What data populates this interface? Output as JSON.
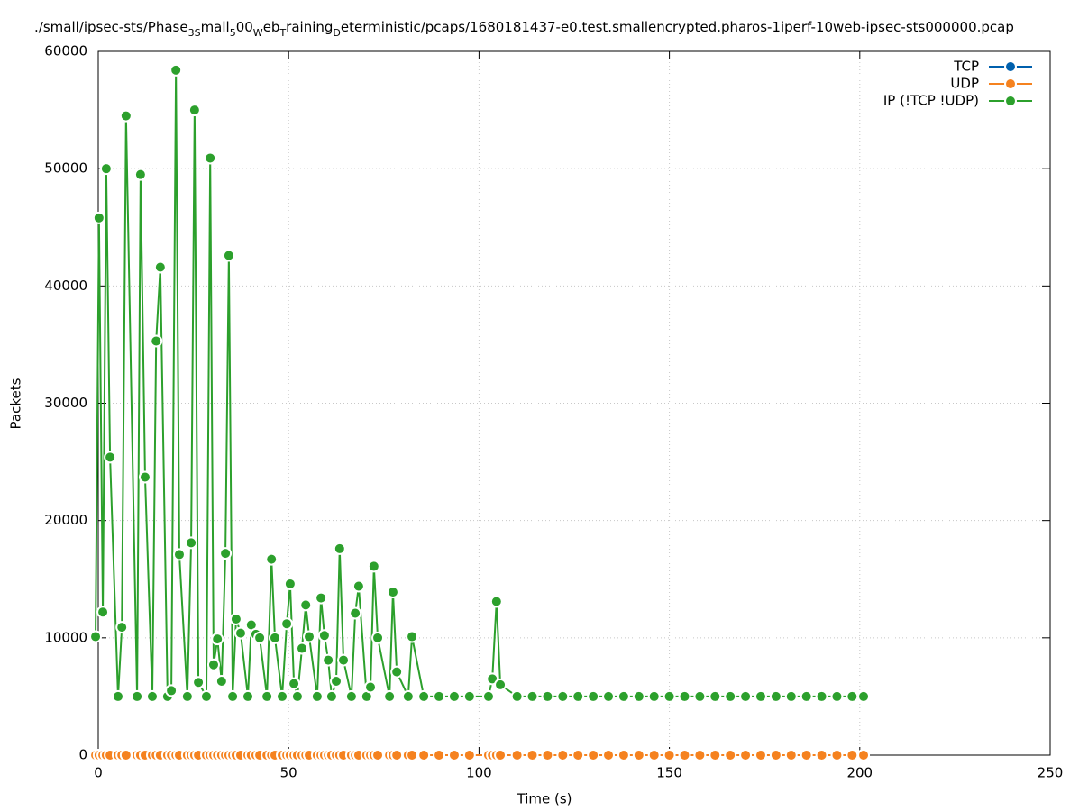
{
  "chart_data": {
    "type": "line",
    "title": [
      {
        "text": "./small/ipsec-sts/Phase"
      },
      {
        "text": "3S",
        "sub": true
      },
      {
        "text": "mall"
      },
      {
        "text": "5",
        "sub": true
      },
      {
        "text": "00"
      },
      {
        "text": "W",
        "sub": true
      },
      {
        "text": "eb"
      },
      {
        "text": "T",
        "sub": true
      },
      {
        "text": "raining"
      },
      {
        "text": "D",
        "sub": true
      },
      {
        "text": "eterministic/pcaps/1680181437-e0.test.smallencrypted.pharos-1iperf-10web-ipsec-sts000000.pcap"
      }
    ],
    "x_label": "Time (s)",
    "y_label": "Packets",
    "x": [
      -0.7,
      0.2,
      1.2,
      2.1,
      3.1,
      5.2,
      6.2,
      7.3,
      10.2,
      11.1,
      12.3,
      14.2,
      15.2,
      16.3,
      18.2,
      19.2,
      20.4,
      21.3,
      23.4,
      24.4,
      25.3,
      26.3,
      28.4,
      29.4,
      30.3,
      31.3,
      32.4,
      33.4,
      34.3,
      35.3,
      36.2,
      37.4,
      39.3,
      40.2,
      41.4,
      42.4,
      44.3,
      45.5,
      46.4,
      48.3,
      49.5,
      50.4,
      51.4,
      52.3,
      53.5,
      54.5,
      55.4,
      57.5,
      58.5,
      59.4,
      60.4,
      61.3,
      62.5,
      63.4,
      64.4,
      66.5,
      67.5,
      68.4,
      70.5,
      71.5,
      72.4,
      73.4,
      76.5,
      77.4,
      78.4,
      81.4,
      82.4,
      85.5,
      89.5,
      93.5,
      97.5,
      102.5,
      103.5,
      104.6,
      105.6,
      110,
      114,
      118,
      122,
      126,
      130,
      134,
      138,
      142,
      146,
      150,
      154,
      158,
      162,
      166,
      170,
      174,
      178,
      182,
      186,
      190,
      194,
      198,
      201
    ],
    "series": [
      {
        "name": "TCP",
        "color": "#0060ad",
        "values": [
          0,
          0,
          0,
          0,
          0,
          0,
          0,
          0,
          0,
          0,
          0,
          0,
          0,
          0,
          0,
          0,
          0,
          0,
          0,
          0,
          0,
          0,
          0,
          0,
          0,
          0,
          0,
          0,
          0,
          0,
          0,
          0,
          0,
          0,
          0,
          0,
          0,
          0,
          0,
          0,
          0,
          0,
          0,
          0,
          0,
          0,
          0,
          0,
          0,
          0,
          0,
          0,
          0,
          0,
          0,
          0,
          0,
          0,
          0,
          0,
          0,
          0,
          0,
          0,
          0,
          0,
          0,
          0,
          0,
          0,
          0,
          0,
          0,
          0,
          0,
          0,
          0,
          0,
          0,
          0,
          0,
          0,
          0,
          0,
          0,
          0,
          0,
          0,
          0,
          0,
          0,
          0,
          0,
          0,
          0,
          0,
          0,
          0,
          0
        ]
      },
      {
        "name": "UDP",
        "color": "#f5821f",
        "values": [
          0,
          0,
          0,
          0,
          0,
          0,
          0,
          0,
          0,
          0,
          0,
          0,
          0,
          0,
          0,
          0,
          0,
          0,
          0,
          0,
          0,
          0,
          0,
          0,
          0,
          0,
          0,
          0,
          0,
          0,
          0,
          0,
          0,
          0,
          0,
          0,
          0,
          0,
          0,
          0,
          0,
          0,
          0,
          0,
          0,
          0,
          0,
          0,
          0,
          0,
          0,
          0,
          0,
          0,
          0,
          0,
          0,
          0,
          0,
          0,
          0,
          0,
          0,
          0,
          0,
          0,
          0,
          0,
          0,
          0,
          0,
          0,
          0,
          0,
          0,
          0,
          0,
          0,
          0,
          0,
          0,
          0,
          0,
          0,
          0,
          0,
          0,
          0,
          0,
          0,
          0,
          0,
          0,
          0,
          0,
          0,
          0,
          0,
          0
        ]
      },
      {
        "name": "IP (!TCP  !UDP)",
        "color": "#2ca02c",
        "values": [
          10100,
          45800,
          12200,
          50000,
          25400,
          5000,
          10900,
          54500,
          5000,
          49500,
          23700,
          5000,
          35300,
          41600,
          5000,
          5500,
          58400,
          17100,
          5000,
          18100,
          55000,
          6200,
          5000,
          50900,
          7700,
          9900,
          6300,
          17200,
          42600,
          5000,
          11600,
          10400,
          5000,
          11100,
          10300,
          10000,
          5000,
          16700,
          10000,
          5000,
          11200,
          14600,
          6100,
          5000,
          9100,
          12800,
          10100,
          5000,
          13400,
          10200,
          8100,
          5000,
          6300,
          17600,
          8100,
          5000,
          12100,
          14400,
          5000,
          5800,
          16100,
          10000,
          5000,
          13900,
          7100,
          5000,
          10100,
          5000,
          5000,
          5000,
          5000,
          5000,
          6500,
          13100,
          6000,
          5000,
          5000,
          5000,
          5000,
          5000,
          5000,
          5000,
          5000,
          5000,
          5000,
          5000,
          5000,
          5000,
          5000,
          5000,
          5000,
          5000,
          5000,
          5000,
          5000,
          5000,
          5000,
          5000,
          5000
        ]
      }
    ],
    "xlim": [
      0,
      250
    ],
    "xticks": [
      0,
      50,
      100,
      150,
      200,
      250
    ],
    "ylim": [
      0,
      60000
    ],
    "yticks": [
      0,
      10000,
      20000,
      30000,
      40000,
      50000,
      60000
    ],
    "grid": true,
    "legend": "top-right"
  }
}
